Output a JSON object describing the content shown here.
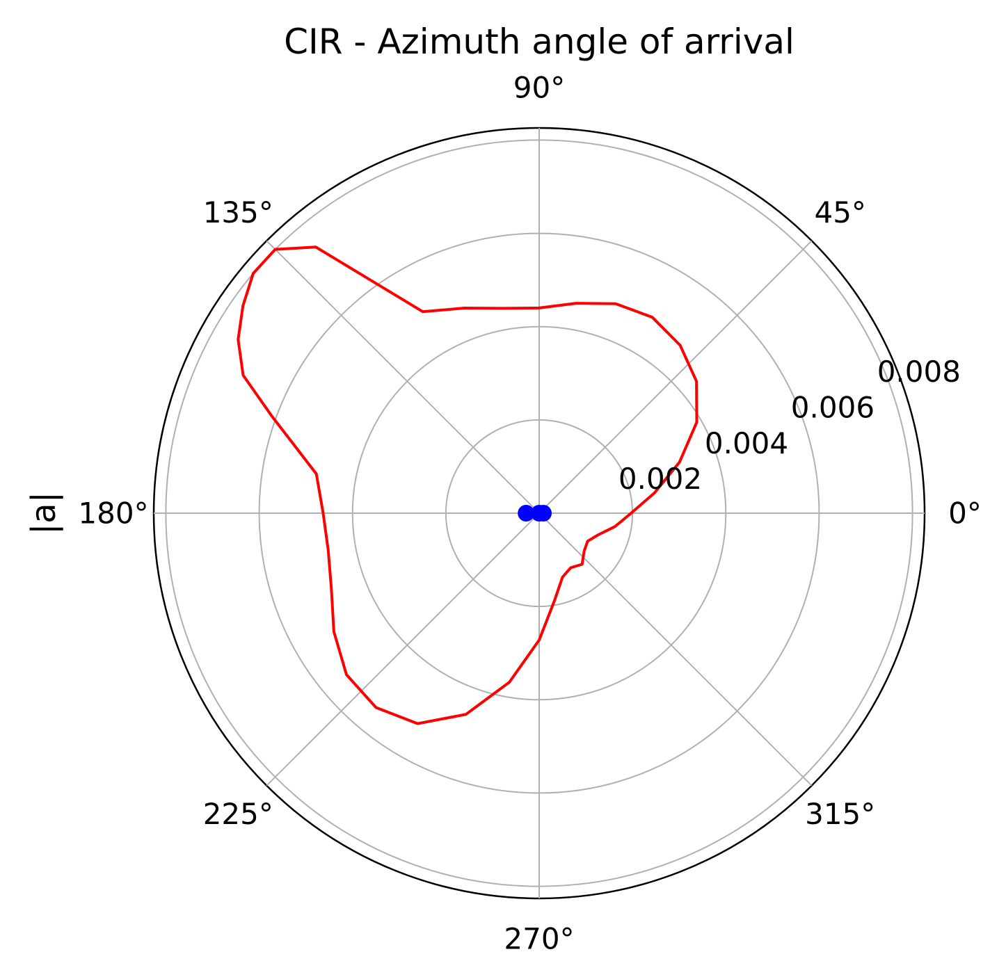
{
  "chart_data": {
    "type": "polar-line",
    "title": "CIR - Azimuth angle of arrival",
    "ylabel": "|a|",
    "angle_ticks": [
      {
        "deg": 0,
        "label": "0°"
      },
      {
        "deg": 45,
        "label": "45°"
      },
      {
        "deg": 90,
        "label": "90°"
      },
      {
        "deg": 135,
        "label": "135°"
      },
      {
        "deg": 180,
        "label": "180°"
      },
      {
        "deg": 225,
        "label": "225°"
      },
      {
        "deg": 270,
        "label": "270°"
      },
      {
        "deg": 315,
        "label": "315°"
      }
    ],
    "radial_ticks": [
      {
        "value": 0.002,
        "label": "0.002"
      },
      {
        "value": 0.004,
        "label": "0.004"
      },
      {
        "value": 0.006,
        "label": "0.006"
      },
      {
        "value": 0.008,
        "label": "0.008"
      }
    ],
    "rlim": [
      0,
      0.00826
    ],
    "grid": true,
    "colors": {
      "pattern": "#ff0000",
      "marker": "#0000ff",
      "grid": "#b0b0b0"
    },
    "series": [
      {
        "color": "#ff0000",
        "theta_deg": [
          0,
          10,
          20,
          30,
          40,
          50,
          60,
          70,
          80,
          90,
          100,
          110,
          120,
          130,
          135,
          140,
          145,
          150,
          155,
          160,
          170,
          180,
          190,
          200,
          210,
          220,
          230,
          240,
          250,
          260,
          270,
          280,
          290,
          300,
          310,
          320,
          330,
          340,
          350,
          360
        ],
        "r": [
          0.00197,
          0.00251,
          0.0032,
          0.0039,
          0.0044,
          0.0047,
          0.00485,
          0.00478,
          0.00457,
          0.0044,
          0.00446,
          0.00468,
          0.00499,
          0.00745,
          0.008,
          0.008,
          0.00775,
          0.00745,
          0.007,
          0.0061,
          0.00485,
          0.00463,
          0.00459,
          0.00474,
          0.00508,
          0.00539,
          0.00544,
          0.00521,
          0.00459,
          0.00368,
          0.00272,
          0.0019,
          0.00146,
          0.00135,
          0.00143,
          0.00126,
          0.0012,
          0.00135,
          0.00165,
          0.00197
        ]
      }
    ],
    "markers": [
      {
        "theta_deg": 180,
        "r": 0.00028,
        "color": "#0000ff"
      },
      {
        "theta_deg": 0,
        "r": 9e-05,
        "color": "#0000ff"
      },
      {
        "theta_deg": 0,
        "r": 0.0,
        "color": "#0000ff"
      }
    ]
  }
}
